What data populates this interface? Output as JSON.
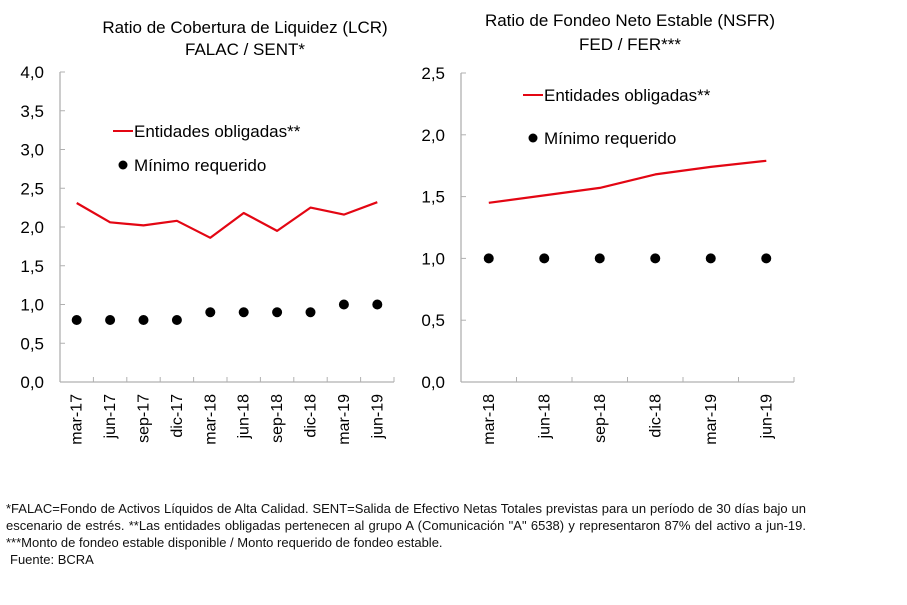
{
  "chart_data": [
    {
      "type": "line",
      "title": "Ratio de Cobertura de Liquidez (LCR)",
      "subtitle": "FALAC / SENT*",
      "xlabel": "",
      "ylabel": "",
      "categories": [
        "mar-17",
        "jun-17",
        "sep-17",
        "dic-17",
        "mar-18",
        "jun-18",
        "sep-18",
        "dic-18",
        "mar-19",
        "jun-19"
      ],
      "ylim": [
        0,
        4
      ],
      "yticks": [
        "0,0",
        "0,5",
        "1,0",
        "1,5",
        "2,0",
        "2,5",
        "3,0",
        "3,5",
        "4,0"
      ],
      "ytick_values": [
        0,
        0.5,
        1,
        1.5,
        2,
        2.5,
        3,
        3.5,
        4
      ],
      "grid": false,
      "legend_position": "upper-center",
      "series": [
        {
          "name": "Entidades obligadas**",
          "kind": "line",
          "color": "#e30613",
          "values": [
            2.31,
            2.06,
            2.02,
            2.08,
            1.86,
            2.18,
            1.95,
            2.25,
            2.16,
            2.32
          ]
        },
        {
          "name": "Mínimo requerido",
          "kind": "scatter",
          "color": "#000000",
          "values": [
            0.8,
            0.8,
            0.8,
            0.8,
            0.9,
            0.9,
            0.9,
            0.9,
            1.0,
            1.0
          ]
        }
      ]
    },
    {
      "type": "line",
      "title": "Ratio de Fondeo Neto Estable (NSFR)",
      "subtitle": "FED / FER***",
      "xlabel": "",
      "ylabel": "",
      "categories": [
        "mar-18",
        "jun-18",
        "sep-18",
        "dic-18",
        "mar-19",
        "jun-19"
      ],
      "ylim": [
        0,
        2.5
      ],
      "yticks": [
        "0,0",
        "0,5",
        "1,0",
        "1,5",
        "2,0",
        "2,5"
      ],
      "ytick_values": [
        0,
        0.5,
        1,
        1.5,
        2,
        2.5
      ],
      "grid": false,
      "legend_position": "top-center",
      "series": [
        {
          "name": "Entidades obligadas**",
          "kind": "line",
          "color": "#e30613",
          "values": [
            1.45,
            1.51,
            1.57,
            1.68,
            1.74,
            1.79
          ]
        },
        {
          "name": "Mínimo requerido",
          "kind": "scatter",
          "color": "#000000",
          "values": [
            1.0,
            1.0,
            1.0,
            1.0,
            1.0,
            1.0
          ]
        }
      ]
    }
  ],
  "footnote": {
    "text": "*FALAC=Fondo de Activos Líquidos de Alta Calidad. SENT=Salida de Efectivo Netas Totales previstas para un período de 30 días bajo un escenario de estrés. **Las entidades obligadas pertenecen al grupo A (Comunicación \"A\" 6538) y representaron 87% del activo a jun-19. ***Monto de fondeo estable disponible / Monto requerido de fondeo estable.",
    "source": "Fuente: BCRA"
  }
}
